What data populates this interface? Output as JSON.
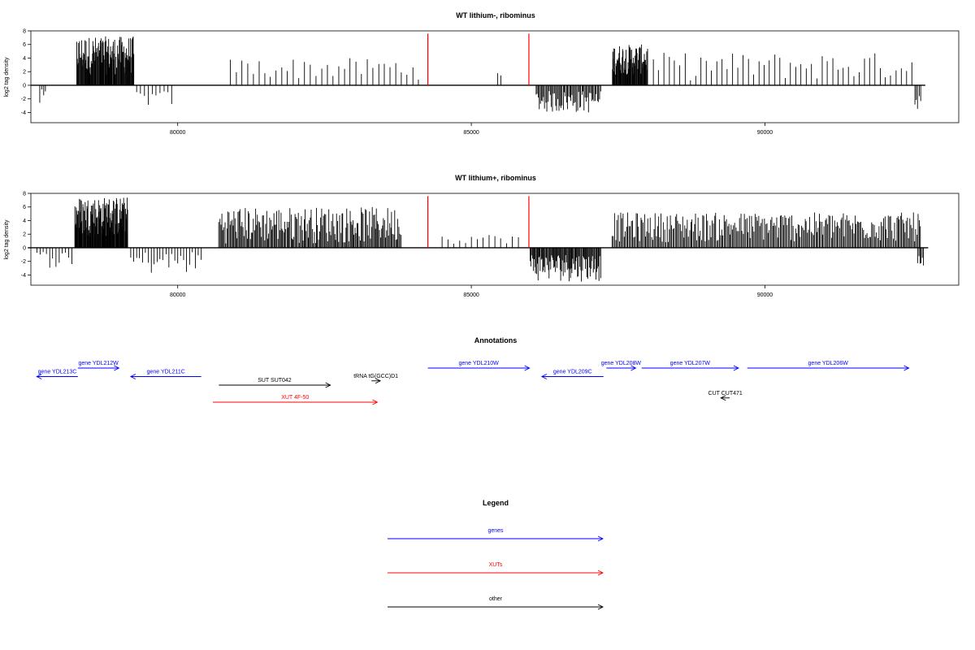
{
  "chart_data": [
    {
      "type": "bar",
      "title": "WT lithium-, ribominus",
      "ylabel": "log2 tag density",
      "xlim": [
        77500,
        93300
      ],
      "ylim": [
        -5.5,
        8
      ],
      "x_ticks": [
        80000,
        85000,
        90000
      ],
      "y_ticks": [
        -4,
        -2,
        0,
        2,
        4,
        6,
        8
      ],
      "grid": false,
      "markers": [
        {
          "x": 84260,
          "color": "#ff0000"
        },
        {
          "x": 85980,
          "color": "#ff0000"
        }
      ],
      "regions": [
        {
          "start": 77650,
          "end": 77750,
          "count": 4,
          "min": -3.8,
          "max": -0.6,
          "sign": -1
        },
        {
          "start": 78280,
          "end": 79250,
          "count": 110,
          "min": 1.5,
          "max": 7.2,
          "sign": 1
        },
        {
          "start": 79300,
          "end": 79900,
          "count": 10,
          "min": -3.2,
          "max": -0.8,
          "sign": -1
        },
        {
          "start": 80900,
          "end": 84100,
          "count": 34,
          "min": 0.8,
          "max": 4.0,
          "sign": 1
        },
        {
          "start": 85450,
          "end": 85500,
          "count": 2,
          "min": 0.8,
          "max": 1.8,
          "sign": 1
        },
        {
          "start": 86100,
          "end": 87200,
          "count": 60,
          "min": -4.2,
          "max": -0.8,
          "sign": -1
        },
        {
          "start": 87400,
          "end": 88000,
          "count": 70,
          "min": 1.5,
          "max": 6.0,
          "sign": 1
        },
        {
          "start": 88100,
          "end": 92500,
          "count": 50,
          "min": 0.6,
          "max": 4.8,
          "sign": 1
        },
        {
          "start": 92550,
          "end": 92650,
          "count": 5,
          "min": -3.6,
          "max": -1.0,
          "sign": -1
        }
      ]
    },
    {
      "type": "bar",
      "title": "WT lithium+, ribominus",
      "ylabel": "log2 tag density",
      "xlim": [
        77500,
        93300
      ],
      "ylim": [
        -5.5,
        8
      ],
      "x_ticks": [
        80000,
        85000,
        90000
      ],
      "y_ticks": [
        -4,
        -2,
        0,
        2,
        4,
        6,
        8
      ],
      "grid": false,
      "markers": [
        {
          "x": 84260,
          "color": "#ff0000"
        },
        {
          "x": 85980,
          "color": "#ff0000"
        }
      ],
      "regions": [
        {
          "start": 77600,
          "end": 78200,
          "count": 12,
          "min": -3.0,
          "max": -0.4,
          "sign": -1
        },
        {
          "start": 78250,
          "end": 79150,
          "count": 120,
          "min": 1.5,
          "max": 7.5,
          "sign": 1
        },
        {
          "start": 79200,
          "end": 80400,
          "count": 25,
          "min": -4.0,
          "max": -0.5,
          "sign": -1
        },
        {
          "start": 80700,
          "end": 83800,
          "count": 180,
          "min": 0.6,
          "max": 6.0,
          "sign": 1
        },
        {
          "start": 84500,
          "end": 85800,
          "count": 14,
          "min": 0.6,
          "max": 2.0,
          "sign": 1
        },
        {
          "start": 86000,
          "end": 87200,
          "count": 90,
          "min": -5.0,
          "max": -0.8,
          "sign": -1
        },
        {
          "start": 87400,
          "end": 92650,
          "count": 260,
          "min": 0.8,
          "max": 5.2,
          "sign": 1
        },
        {
          "start": 92600,
          "end": 92700,
          "count": 6,
          "min": -5.2,
          "max": -1.0,
          "sign": -1
        }
      ]
    }
  ],
  "annotations": {
    "title": "Annotations",
    "features": [
      {
        "label": "gene YDL213C",
        "start": 77600,
        "end": 78300,
        "dir": "rev",
        "row": 2,
        "color": "#0000ff"
      },
      {
        "label": "gene YDL212W",
        "start": 78300,
        "end": 79000,
        "dir": "fwd",
        "row": 1,
        "color": "#0000ff"
      },
      {
        "label": "gene YDL211C",
        "start": 79200,
        "end": 80400,
        "dir": "rev",
        "row": 2,
        "color": "#0000ff"
      },
      {
        "label": "SUT SUT042",
        "start": 80700,
        "end": 82600,
        "dir": "fwd",
        "row": 3,
        "color": "#000000"
      },
      {
        "label": "XUT 4F-50",
        "start": 80600,
        "end": 83400,
        "dir": "fwd",
        "row": 5,
        "color": "#ff0000"
      },
      {
        "label": "tRNA tG(GCC)D1",
        "start": 83300,
        "end": 83450,
        "dir": "fwd",
        "row": 2.5,
        "color": "#000000"
      },
      {
        "label": "gene YDL210W",
        "start": 84260,
        "end": 85990,
        "dir": "fwd",
        "row": 1,
        "color": "#0000ff"
      },
      {
        "label": "gene YDL209C",
        "start": 86200,
        "end": 87250,
        "dir": "rev",
        "row": 2,
        "color": "#0000ff"
      },
      {
        "label": "gene YDL208W",
        "start": 87300,
        "end": 87800,
        "dir": "fwd",
        "row": 1,
        "color": "#0000ff"
      },
      {
        "label": "gene YDL207W",
        "start": 87900,
        "end": 89550,
        "dir": "fwd",
        "row": 1,
        "color": "#0000ff"
      },
      {
        "label": "gene YDL206W",
        "start": 89700,
        "end": 92450,
        "dir": "fwd",
        "row": 1,
        "color": "#0000ff"
      },
      {
        "label": "CUT CUT471",
        "start": 89250,
        "end": 89400,
        "dir": "rev",
        "row": 4.5,
        "color": "#000000"
      }
    ]
  },
  "legend": {
    "title": "Legend",
    "items": [
      {
        "label": "genes",
        "color": "#0000ff"
      },
      {
        "label": "XUTs",
        "color": "#ff0000"
      },
      {
        "label": "other",
        "color": "#000000"
      }
    ]
  }
}
